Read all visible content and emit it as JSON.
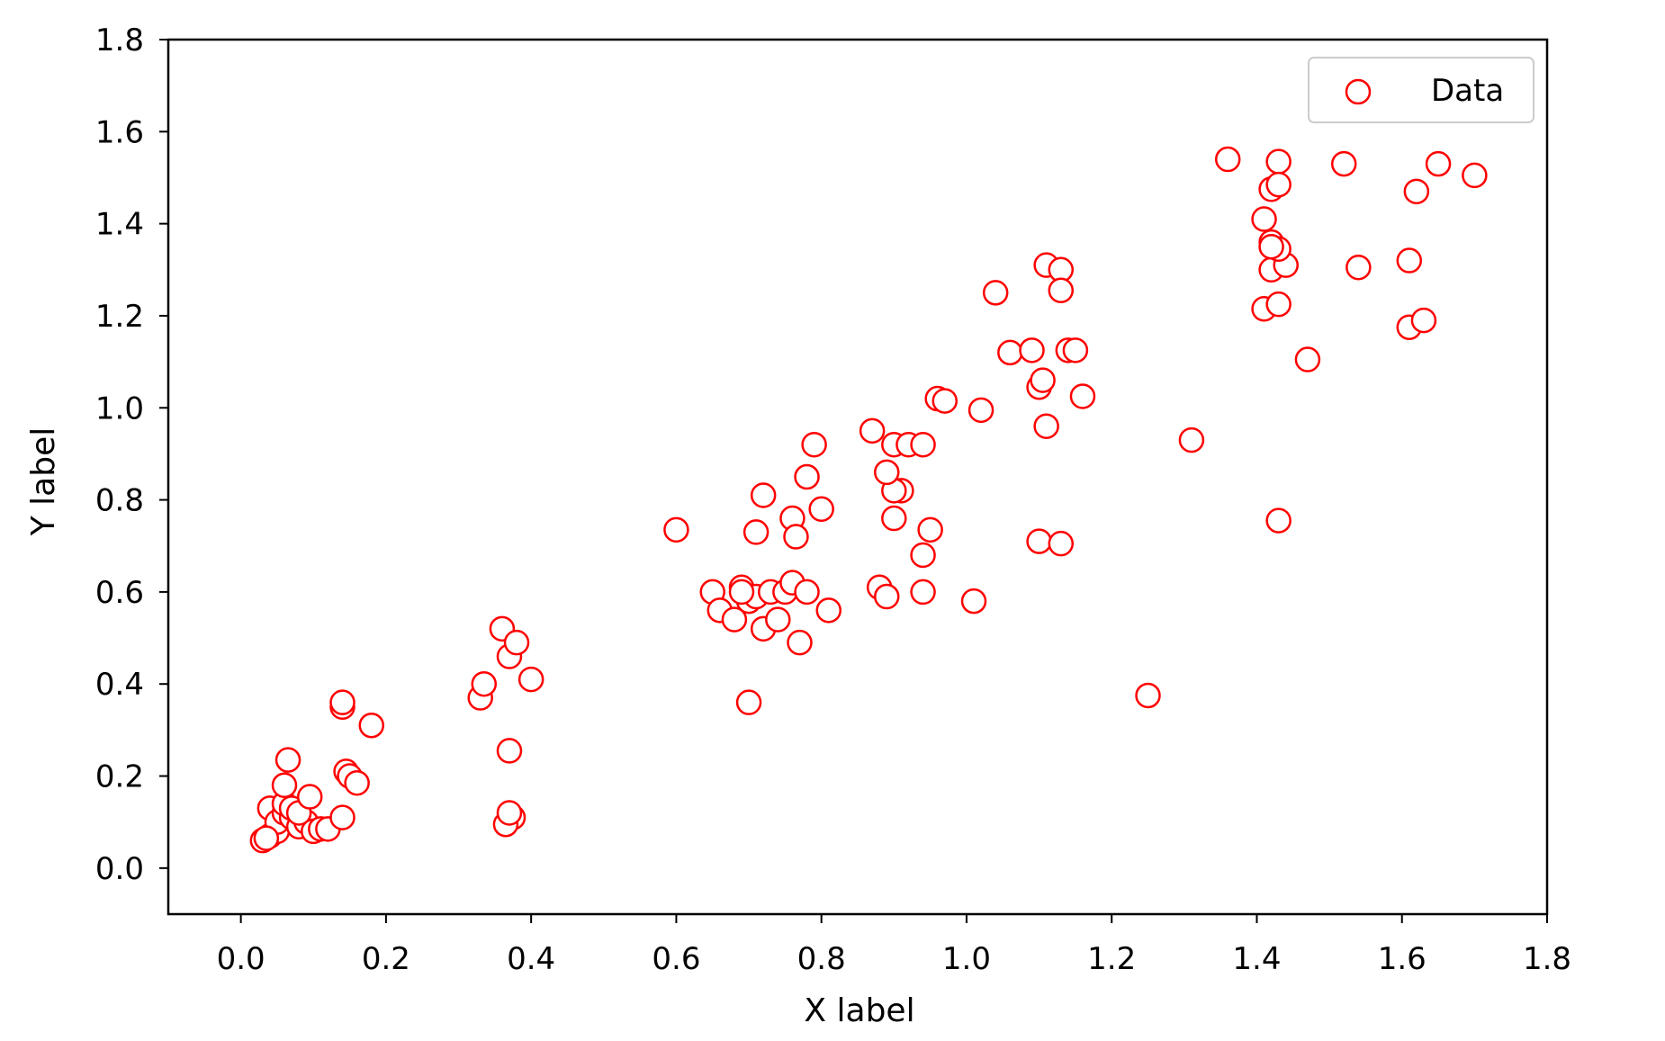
{
  "chart_data": {
    "type": "scatter",
    "title": "",
    "xlabel": "X label",
    "ylabel": "Y label",
    "xlim": [
      -0.1,
      1.8
    ],
    "ylim": [
      -0.1,
      1.8
    ],
    "xticks": [
      0.0,
      0.2,
      0.4,
      0.6,
      0.8,
      1.0,
      1.2,
      1.4,
      1.6,
      1.8
    ],
    "yticks": [
      0.0,
      0.2,
      0.4,
      0.6,
      0.8,
      1.0,
      1.2,
      1.4,
      1.6,
      1.8
    ],
    "xtick_labels": [
      "0.0",
      "0.2",
      "0.4",
      "0.6",
      "0.8",
      "1.0",
      "1.2",
      "1.4",
      "1.6",
      "1.8"
    ],
    "ytick_labels": [
      "0.0",
      "0.2",
      "0.4",
      "0.6",
      "0.8",
      "1.0",
      "1.2",
      "1.4",
      "1.6",
      "1.8"
    ],
    "grid": false,
    "legend": {
      "position": "upper-right",
      "entries": [
        {
          "label": "Data",
          "marker": "open-circle",
          "color": "#ff0000"
        }
      ]
    },
    "marker_color": "#ff0000",
    "series": [
      {
        "name": "Data",
        "x": [
          0.03,
          0.04,
          0.05,
          0.04,
          0.05,
          0.06,
          0.07,
          0.06,
          0.08,
          0.07,
          0.09,
          0.1,
          0.08,
          0.11,
          0.12,
          0.06,
          0.065,
          0.095,
          0.14,
          0.14,
          0.145,
          0.15,
          0.16,
          0.14,
          0.18,
          0.035,
          0.33,
          0.335,
          0.36,
          0.37,
          0.38,
          0.37,
          0.4,
          0.375,
          0.365,
          0.37,
          0.6,
          0.65,
          0.66,
          0.68,
          0.69,
          0.7,
          0.71,
          0.72,
          0.73,
          0.74,
          0.75,
          0.76,
          0.78,
          0.81,
          0.77,
          0.7,
          0.72,
          0.71,
          0.76,
          0.765,
          0.78,
          0.79,
          0.8,
          0.69,
          0.87,
          0.88,
          0.89,
          0.9,
          0.91,
          0.92,
          0.94,
          0.9,
          0.89,
          0.9,
          0.95,
          0.94,
          0.94,
          0.96,
          0.97,
          1.01,
          1.02,
          1.04,
          1.06,
          1.09,
          1.11,
          1.13,
          1.13,
          1.1,
          1.105,
          1.11,
          1.14,
          1.15,
          1.16,
          1.1,
          1.13,
          1.25,
          1.31,
          1.36,
          1.41,
          1.42,
          1.43,
          1.43,
          1.41,
          1.42,
          1.43,
          1.44,
          1.42,
          1.43,
          1.43,
          1.42,
          1.47,
          1.52,
          1.54,
          1.61,
          1.62,
          1.61,
          1.63,
          1.65,
          1.7
        ],
        "y": [
          0.06,
          0.07,
          0.08,
          0.13,
          0.1,
          0.12,
          0.11,
          0.14,
          0.09,
          0.13,
          0.1,
          0.08,
          0.12,
          0.085,
          0.085,
          0.18,
          0.235,
          0.155,
          0.35,
          0.36,
          0.21,
          0.2,
          0.185,
          0.11,
          0.31,
          0.065,
          0.37,
          0.4,
          0.52,
          0.46,
          0.49,
          0.255,
          0.41,
          0.11,
          0.095,
          0.12,
          0.735,
          0.6,
          0.56,
          0.54,
          0.61,
          0.58,
          0.59,
          0.52,
          0.6,
          0.54,
          0.6,
          0.62,
          0.6,
          0.56,
          0.49,
          0.36,
          0.81,
          0.73,
          0.76,
          0.72,
          0.85,
          0.92,
          0.78,
          0.6,
          0.95,
          0.61,
          0.59,
          0.92,
          0.82,
          0.92,
          0.92,
          0.82,
          0.86,
          0.76,
          0.735,
          0.68,
          0.6,
          1.02,
          1.015,
          0.58,
          0.995,
          1.25,
          1.12,
          1.125,
          1.31,
          1.3,
          1.255,
          1.045,
          1.06,
          0.96,
          1.125,
          1.125,
          1.025,
          0.71,
          0.705,
          0.375,
          0.93,
          1.54,
          1.41,
          1.475,
          1.535,
          1.485,
          1.215,
          1.3,
          1.225,
          1.31,
          1.36,
          1.345,
          0.755,
          1.35,
          1.105,
          1.53,
          1.305,
          1.32,
          1.47,
          1.175,
          1.19,
          1.53,
          1.505
        ]
      }
    ]
  }
}
